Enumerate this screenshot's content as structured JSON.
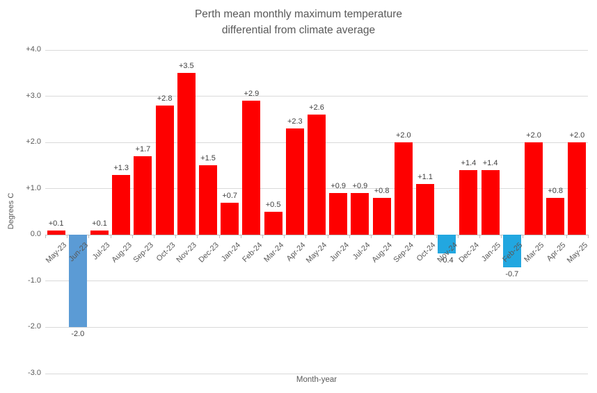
{
  "chart_data": {
    "type": "bar",
    "title": "Perth mean monthly maximum temperature differential from climate average",
    "title_lines": [
      "Perth mean monthly maximum temperature",
      "differential from climate average"
    ],
    "xlabel": "Month-year",
    "ylabel": "Degrees C",
    "ylim": [
      -3.0,
      4.0
    ],
    "grid": true,
    "legend": "none",
    "yticks": [
      {
        "value": 4.0,
        "label": "+4.0"
      },
      {
        "value": 3.0,
        "label": "+3.0"
      },
      {
        "value": 2.0,
        "label": "+2.0"
      },
      {
        "value": 1.0,
        "label": "+1.0"
      },
      {
        "value": 0.0,
        "label": "0.0"
      },
      {
        "value": -1.0,
        "label": "-1.0"
      },
      {
        "value": -2.0,
        "label": "-2.0"
      },
      {
        "value": -3.0,
        "label": "-3.0"
      }
    ],
    "categories": [
      "May-23",
      "Jun-23",
      "Jul-23",
      "Aug-23",
      "Sep-23",
      "Oct-23",
      "Nov-23",
      "Dec-23",
      "Jan-24",
      "Feb-24",
      "Mar-24",
      "Apr-24",
      "May-24",
      "Jun-24",
      "Jul-24",
      "Aug-24",
      "Sep-24",
      "Oct-24",
      "Nov-24",
      "Dec-24",
      "Jan-25",
      "Feb-25",
      "Mar-25",
      "Apr-25",
      "May-25"
    ],
    "values": [
      0.1,
      -2.0,
      0.1,
      1.3,
      1.7,
      2.8,
      3.5,
      1.5,
      0.7,
      2.9,
      0.5,
      2.3,
      2.6,
      0.9,
      0.9,
      0.8,
      2.0,
      1.1,
      -0.4,
      1.4,
      1.4,
      -0.7,
      2.0,
      0.8,
      2.0
    ],
    "value_labels": [
      "+0.1",
      "-2.0",
      "+0.1",
      "+1.3",
      "+1.7",
      "+2.8",
      "+3.5",
      "+1.5",
      "+0.7",
      "+2.9",
      "+0.5",
      "+2.3",
      "+2.6",
      "+0.9",
      "+0.9",
      "+0.8",
      "+2.0",
      "+1.1",
      "-0.4",
      "+1.4",
      "+1.4",
      "-0.7",
      "+2.0",
      "+0.8",
      "+2.0"
    ],
    "bar_colors": [
      "#FE0000",
      "#5B9BD5",
      "#FE0000",
      "#FE0000",
      "#FE0000",
      "#FE0000",
      "#FE0000",
      "#FE0000",
      "#FE0000",
      "#FE0000",
      "#FE0000",
      "#FE0000",
      "#FE0000",
      "#FE0000",
      "#FE0000",
      "#FE0000",
      "#FE0000",
      "#FE0000",
      "#22A7E0",
      "#FE0000",
      "#FE0000",
      "#22A7E0",
      "#FE0000",
      "#FE0000",
      "#FE0000"
    ],
    "colors": {
      "positive_bar": "#FE0000",
      "negative_bar_steel_blue": "#5B9BD5",
      "negative_bar_cyan": "#22A7E0",
      "gridline": "#D9D9D9",
      "axis_line": "#BFBFBF",
      "title_text": "#595959",
      "axis_text": "#595959",
      "value_text": "#404040"
    }
  }
}
